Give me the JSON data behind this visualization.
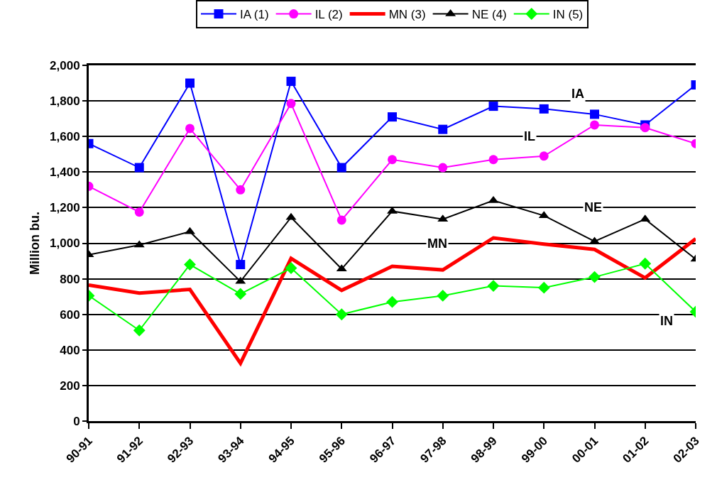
{
  "chart_data": {
    "type": "line",
    "ylabel": "Million bu.",
    "categories": [
      "90-91",
      "91-92",
      "92-93",
      "93-94",
      "94-95",
      "95-96",
      "96-97",
      "97-98",
      "98-99",
      "99-00",
      "00-01",
      "01-02",
      "02-03"
    ],
    "series": [
      {
        "name": "IA (1)",
        "color": "#0000ff",
        "marker": "square",
        "values": [
          1560,
          1425,
          1900,
          880,
          1910,
          1425,
          1710,
          1640,
          1770,
          1755,
          1725,
          1665,
          1890
        ]
      },
      {
        "name": "IL (2)",
        "color": "#ff00ff",
        "marker": "circle",
        "values": [
          1320,
          1175,
          1645,
          1300,
          1785,
          1130,
          1470,
          1425,
          1470,
          1490,
          1665,
          1650,
          1560
        ]
      },
      {
        "name": "MN (3)",
        "color": "#ff0000",
        "marker": "none",
        "values": [
          765,
          720,
          740,
          325,
          915,
          735,
          870,
          850,
          1030,
          995,
          965,
          805,
          1025
        ]
      },
      {
        "name": "NE (4)",
        "color": "#000000",
        "marker": "triangle",
        "values": [
          935,
          990,
          1065,
          785,
          1145,
          855,
          1180,
          1135,
          1240,
          1155,
          1010,
          1135,
          910
        ]
      },
      {
        "name": "IN (5)",
        "color": "#00ff00",
        "marker": "diamond",
        "values": [
          705,
          510,
          880,
          715,
          860,
          600,
          670,
          705,
          760,
          750,
          810,
          885,
          615
        ]
      }
    ],
    "annotations": [
      "IA",
      "IL",
      "MN",
      "NE",
      "IN"
    ],
    "ylim": [
      0,
      2000
    ],
    "yticks": [
      {
        "value": 0,
        "label": "0"
      },
      {
        "value": 200,
        "label": "200"
      },
      {
        "value": 400,
        "label": "400"
      },
      {
        "value": 600,
        "label": "600"
      },
      {
        "value": 800,
        "label": "800"
      },
      {
        "value": 1000,
        "label": "1,000"
      },
      {
        "value": 1200,
        "label": "1,200"
      },
      {
        "value": 1400,
        "label": "1,400"
      },
      {
        "value": 1600,
        "label": "1,600"
      },
      {
        "value": 1800,
        "label": "1,800"
      },
      {
        "value": 2000,
        "label": "2,000"
      }
    ],
    "grid": "y",
    "legend": "top",
    "line_style": "solid"
  }
}
